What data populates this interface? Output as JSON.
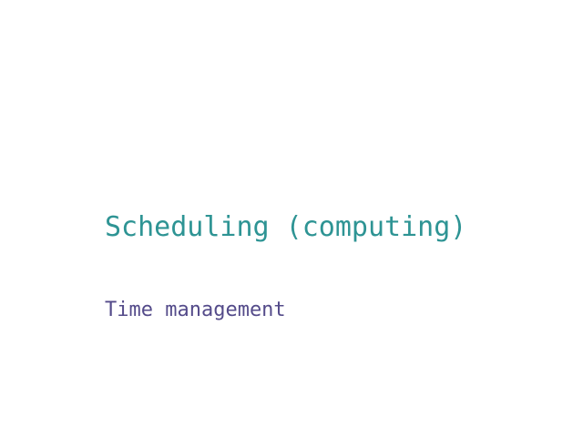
{
  "content": {
    "title": "Scheduling (computing)",
    "subtitle": "Time management"
  },
  "colors": {
    "background": "#ffffff",
    "title": "#2e9494",
    "subtitle": "#544b8a"
  }
}
